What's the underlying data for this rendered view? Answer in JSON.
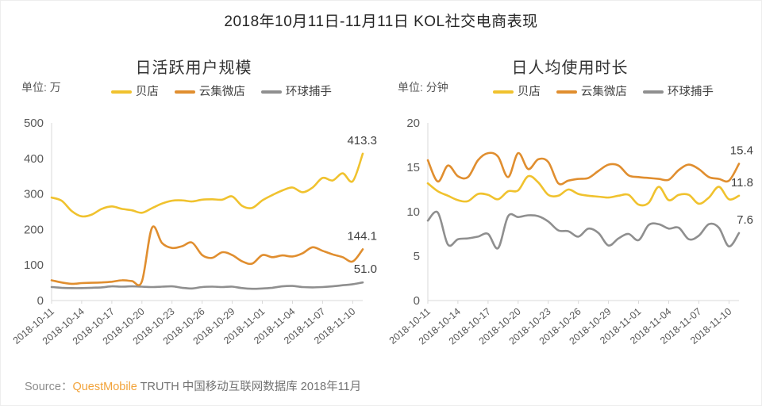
{
  "title": "2018年10月11日-11月11日 KOL社交电商表现",
  "footer": {
    "source_label": "Source：",
    "brand": "QuestMobile",
    "rest": " TRUTH 中国移动互联网数据库 2018年11月"
  },
  "colors": {
    "beidian": "#F0C22E",
    "yunji": "#E08E2F",
    "huanqiu": "#8F8F8F",
    "axis": "#d9d9d9",
    "brand_orange": "#f2a33a"
  },
  "chart_data": [
    {
      "type": "line",
      "title": "日活跃用户规模",
      "unit_label": "单位: 万",
      "ylabel": "万",
      "ylim": [
        0,
        500
      ],
      "yticks": [
        0,
        100,
        200,
        300,
        400,
        500
      ],
      "grid": false,
      "legend_position": "top",
      "x": [
        "2018-10-11",
        "2018-10-12",
        "2018-10-13",
        "2018-10-14",
        "2018-10-15",
        "2018-10-16",
        "2018-10-17",
        "2018-10-18",
        "2018-10-19",
        "2018-10-20",
        "2018-10-21",
        "2018-10-22",
        "2018-10-23",
        "2018-10-24",
        "2018-10-25",
        "2018-10-26",
        "2018-10-27",
        "2018-10-28",
        "2018-10-29",
        "2018-10-30",
        "2018-10-31",
        "2018-11-01",
        "2018-11-02",
        "2018-11-03",
        "2018-11-04",
        "2018-11-05",
        "2018-11-06",
        "2018-11-07",
        "2018-11-08",
        "2018-11-09",
        "2018-11-10",
        "2018-11-11"
      ],
      "x_tick_labels": [
        "2018-10-11",
        "2018-10-14",
        "2018-10-17",
        "2018-10-20",
        "2018-10-23",
        "2018-10-26",
        "2018-10-29",
        "2018-11-01",
        "2018-11-04",
        "2018-11-07",
        "2018-11-10"
      ],
      "series": [
        {
          "name": "贝店",
          "color": "#F0C22E",
          "end_label": "413.3",
          "values": [
            290,
            281,
            252,
            237,
            242,
            258,
            265,
            258,
            254,
            247,
            260,
            273,
            281,
            282,
            279,
            284,
            285,
            284,
            293,
            266,
            261,
            282,
            297,
            310,
            318,
            305,
            318,
            345,
            338,
            358,
            336,
            413.3
          ]
        },
        {
          "name": "云集微店",
          "color": "#E08E2F",
          "end_label": "144.1",
          "values": [
            57,
            51,
            47,
            49,
            50,
            51,
            53,
            57,
            55,
            54,
            205,
            162,
            148,
            153,
            163,
            128,
            120,
            136,
            128,
            110,
            104,
            128,
            122,
            127,
            124,
            133,
            150,
            140,
            130,
            122,
            110,
            144.1
          ]
        },
        {
          "name": "环球捕手",
          "color": "#8F8F8F",
          "end_label": "51.0",
          "values": [
            38,
            36,
            35,
            35,
            36,
            37,
            40,
            39,
            40,
            39,
            38,
            39,
            40,
            36,
            34,
            38,
            39,
            38,
            39,
            35,
            33,
            34,
            36,
            40,
            41,
            38,
            37,
            38,
            40,
            43,
            46,
            51
          ]
        }
      ]
    },
    {
      "type": "line",
      "title": "日人均使用时长",
      "unit_label": "单位: 分钟",
      "ylabel": "分钟",
      "ylim": [
        0,
        20
      ],
      "yticks": [
        0,
        5,
        10,
        15,
        20
      ],
      "grid": false,
      "legend_position": "top",
      "x": [
        "2018-10-11",
        "2018-10-12",
        "2018-10-13",
        "2018-10-14",
        "2018-10-15",
        "2018-10-16",
        "2018-10-17",
        "2018-10-18",
        "2018-10-19",
        "2018-10-20",
        "2018-10-21",
        "2018-10-22",
        "2018-10-23",
        "2018-10-24",
        "2018-10-25",
        "2018-10-26",
        "2018-10-27",
        "2018-10-28",
        "2018-10-29",
        "2018-10-30",
        "2018-10-31",
        "2018-11-01",
        "2018-11-02",
        "2018-11-03",
        "2018-11-04",
        "2018-11-05",
        "2018-11-06",
        "2018-11-07",
        "2018-11-08",
        "2018-11-09",
        "2018-11-10",
        "2018-11-11"
      ],
      "x_tick_labels": [
        "2018-10-11",
        "2018-10-14",
        "2018-10-17",
        "2018-10-20",
        "2018-10-23",
        "2018-10-26",
        "2018-10-29",
        "2018-11-01",
        "2018-11-04",
        "2018-11-07",
        "2018-11-10"
      ],
      "series": [
        {
          "name": "贝店",
          "color": "#F0C22E",
          "end_label": "11.8",
          "values": [
            13.2,
            12.3,
            11.8,
            11.3,
            11.2,
            12.0,
            11.9,
            11.4,
            12.3,
            12.4,
            14.0,
            13.3,
            11.9,
            11.8,
            12.5,
            12.0,
            11.8,
            11.7,
            11.6,
            11.8,
            11.9,
            10.8,
            11.0,
            12.8,
            11.3,
            11.9,
            11.9,
            10.9,
            11.6,
            12.8,
            11.4,
            11.8
          ]
        },
        {
          "name": "云集微店",
          "color": "#E08E2F",
          "end_label": "15.4",
          "values": [
            15.8,
            13.4,
            15.2,
            14.0,
            13.9,
            15.8,
            16.6,
            16.2,
            13.9,
            16.6,
            14.8,
            15.9,
            15.6,
            13.2,
            13.5,
            13.7,
            13.8,
            14.6,
            15.3,
            15.2,
            14.1,
            13.9,
            13.8,
            13.7,
            13.6,
            14.7,
            15.3,
            14.8,
            13.9,
            13.7,
            13.5,
            15.4
          ]
        },
        {
          "name": "环球捕手",
          "color": "#8F8F8F",
          "end_label": "7.6",
          "values": [
            9.0,
            9.9,
            6.3,
            6.9,
            7.0,
            7.2,
            7.5,
            5.9,
            9.5,
            9.4,
            9.6,
            9.5,
            8.9,
            7.9,
            7.8,
            7.2,
            8.1,
            7.6,
            6.2,
            7.0,
            7.5,
            6.8,
            8.5,
            8.6,
            8.1,
            8.2,
            6.9,
            7.3,
            8.6,
            8.2,
            6.1,
            7.6
          ]
        }
      ]
    }
  ]
}
